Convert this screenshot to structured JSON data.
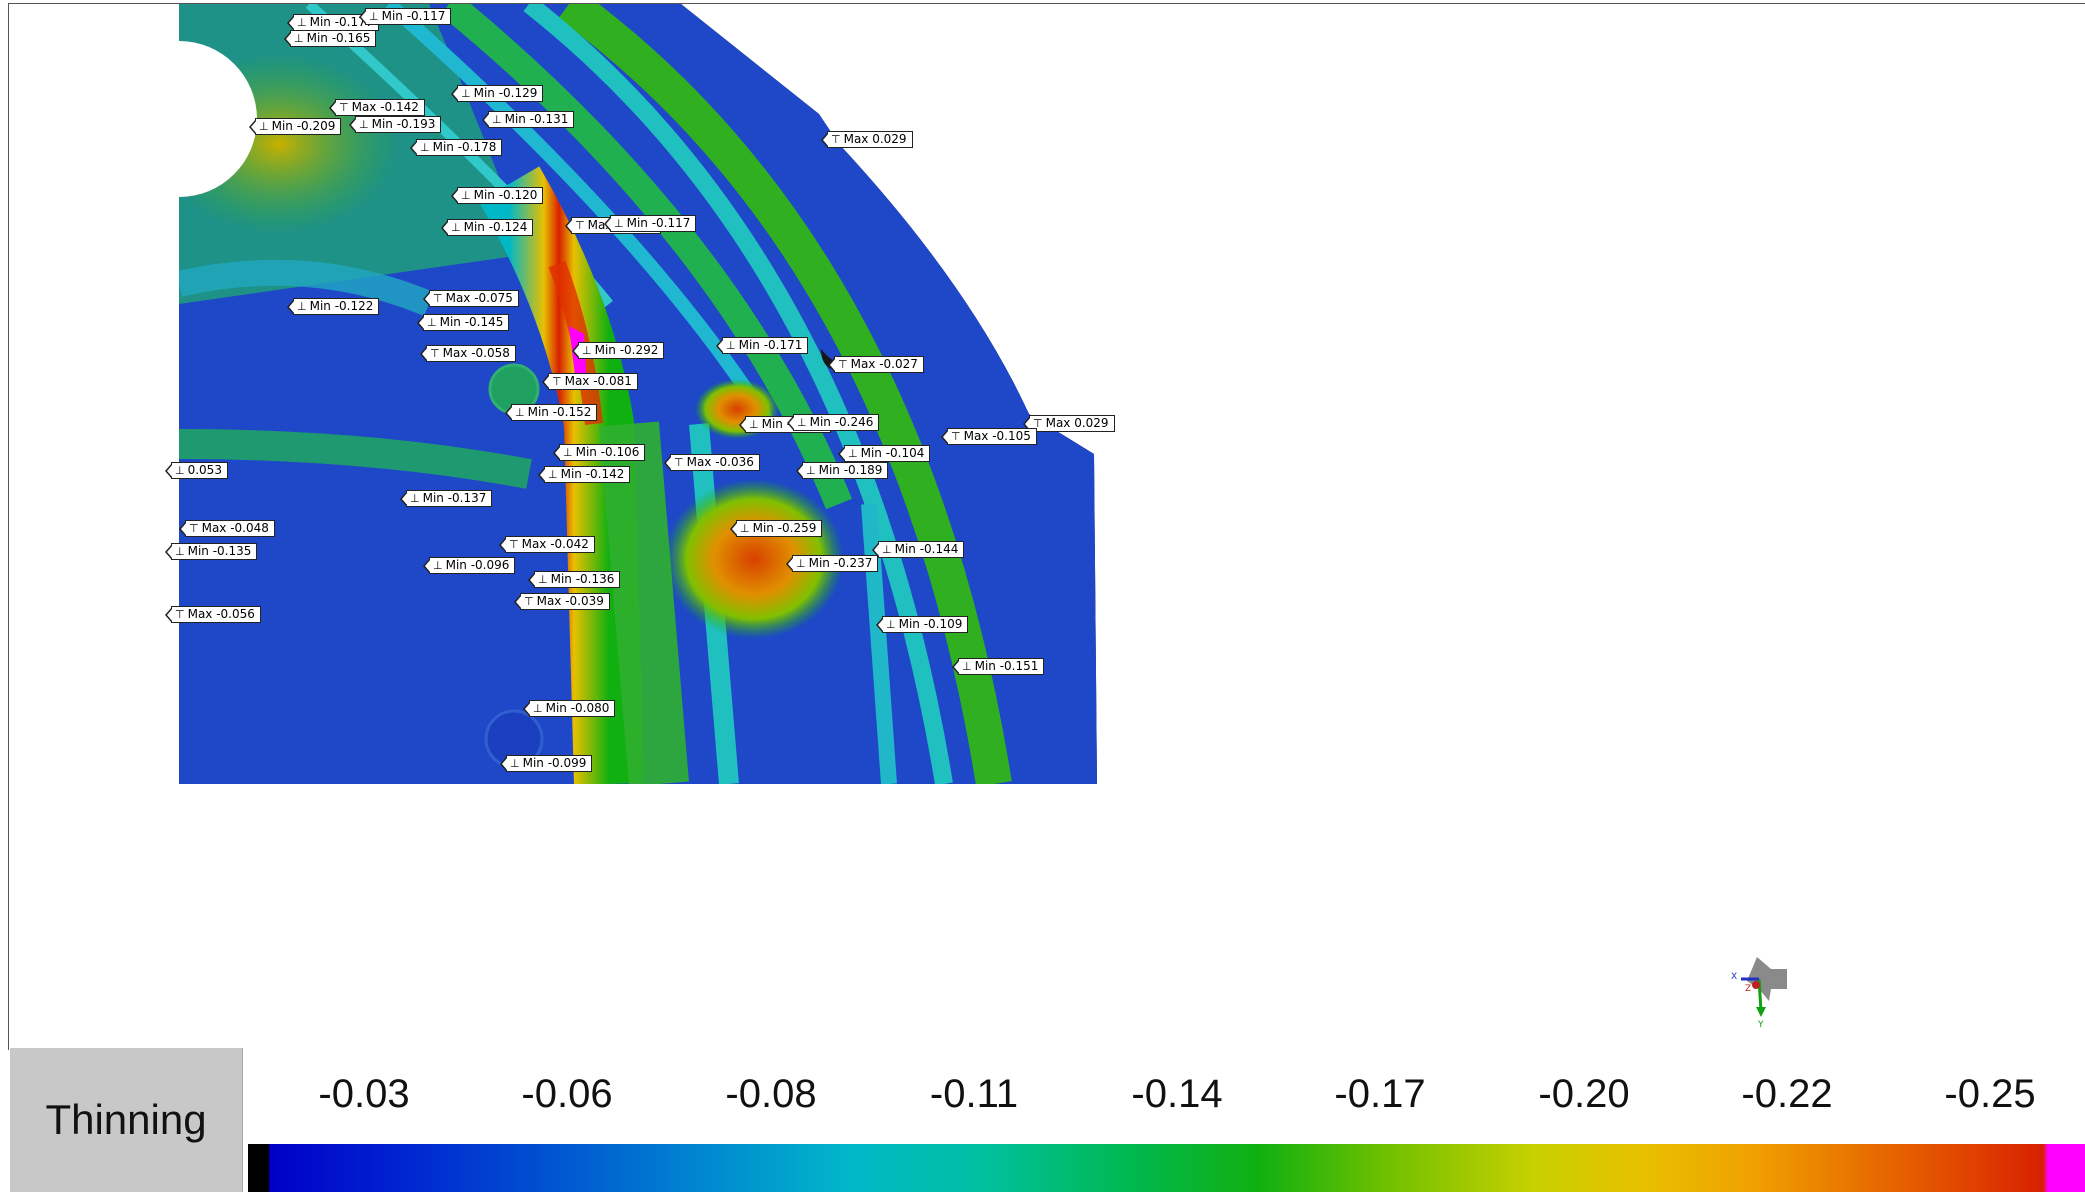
{
  "viewport": {
    "annotations": [
      {
        "kind": "Min",
        "text": "Min -0.177"
      },
      {
        "kind": "Min",
        "text": "Min -0.117"
      },
      {
        "kind": "Min",
        "text": "Min -0.165"
      },
      {
        "kind": "Min",
        "text": "Min -0.129"
      },
      {
        "kind": "Max",
        "text": "Max -0.142"
      },
      {
        "kind": "Min",
        "text": "Min -0.131"
      },
      {
        "kind": "Min",
        "text": "Min -0.209"
      },
      {
        "kind": "Min",
        "text": "Min -0.193"
      },
      {
        "kind": "Max",
        "text": "Max 0.029"
      },
      {
        "kind": "Min",
        "text": "Min -0.178"
      },
      {
        "kind": "Min",
        "text": "Min -0.120"
      },
      {
        "kind": "Min",
        "text": "Min -0.124"
      },
      {
        "kind": "Max",
        "text": "Max -0.064"
      },
      {
        "kind": "Min",
        "text": "Min -0.117"
      },
      {
        "kind": "Max",
        "text": "Max -0.075"
      },
      {
        "kind": "Min",
        "text": "Min -0.122"
      },
      {
        "kind": "Min",
        "text": "Min -0.145"
      },
      {
        "kind": "Max",
        "text": "Max -0.058"
      },
      {
        "kind": "Min",
        "text": "Min -0.292"
      },
      {
        "kind": "Min",
        "text": "Min -0.171"
      },
      {
        "kind": "Max",
        "text": "Max -0.027"
      },
      {
        "kind": "Max",
        "text": "Max -0.081"
      },
      {
        "kind": "Min",
        "text": "Min -0.152"
      },
      {
        "kind": "Min",
        "text": "Min -0.232"
      },
      {
        "kind": "Min",
        "text": "Min -0.246"
      },
      {
        "kind": "Max",
        "text": "Max 0.029"
      },
      {
        "kind": "Max",
        "text": "Max -0.105"
      },
      {
        "kind": "Min",
        "text": "Min -0.106"
      },
      {
        "kind": "Min",
        "text": "Min -0.104"
      },
      {
        "kind": "Max",
        "text": "Max -0.036"
      },
      {
        "kind": "Min",
        "text": "0.053"
      },
      {
        "kind": "Min",
        "text": "Min -0.142"
      },
      {
        "kind": "Min",
        "text": "Min -0.189"
      },
      {
        "kind": "Min",
        "text": "Min -0.137"
      },
      {
        "kind": "Max",
        "text": "Max -0.048"
      },
      {
        "kind": "Min",
        "text": "Min -0.259"
      },
      {
        "kind": "Max",
        "text": "Max -0.042"
      },
      {
        "kind": "Min",
        "text": "Min -0.144"
      },
      {
        "kind": "Min",
        "text": "Min -0.135"
      },
      {
        "kind": "Min",
        "text": "Min -0.096"
      },
      {
        "kind": "Min",
        "text": "Min -0.237"
      },
      {
        "kind": "Min",
        "text": "Min -0.136"
      },
      {
        "kind": "Max",
        "text": "Max -0.039"
      },
      {
        "kind": "Max",
        "text": "Max -0.056"
      },
      {
        "kind": "Min",
        "text": "Min -0.109"
      },
      {
        "kind": "Min",
        "text": "Min -0.151"
      },
      {
        "kind": "Min",
        "text": "Min -0.080"
      },
      {
        "kind": "Min",
        "text": "Min -0.099"
      }
    ],
    "triad": {
      "x": "X",
      "y": "Y",
      "z": "Z"
    }
  },
  "legend": {
    "title": "Thinning",
    "ticks": [
      "-0.03",
      "-0.06",
      "-0.08",
      "-0.11",
      "-0.14",
      "-0.17",
      "-0.20",
      "-0.22",
      "-0.25"
    ],
    "colors": {
      "low": "#0000c8",
      "mid": "#00b850",
      "high": "#d82000",
      "over": "#ff00ff",
      "under": "#000000"
    }
  }
}
